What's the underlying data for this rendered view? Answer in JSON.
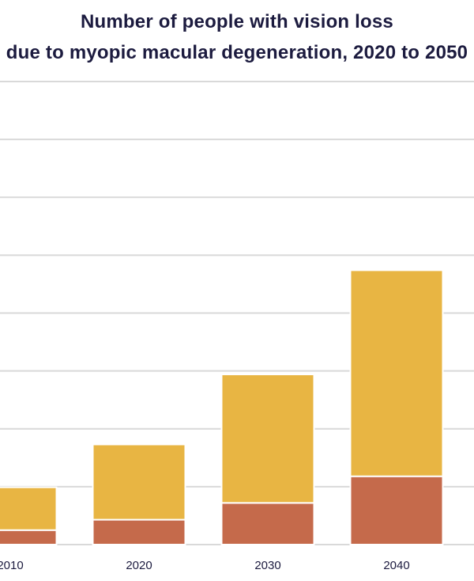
{
  "chart_data": {
    "type": "bar",
    "stacked": true,
    "title": "Number of people with vision loss",
    "subtitle": "due to myopic macular degeneration, 2020 to 2050",
    "categories": [
      "2010",
      "2020",
      "2030",
      "2040"
    ],
    "series": [
      {
        "name": "",
        "color": "#c56a4b",
        "values": [
          2.5,
          4.3,
          7.2,
          11.8
        ]
      },
      {
        "name": "",
        "color": "#e8b543",
        "values": [
          7.4,
          13.0,
          22.2,
          35.6
        ]
      }
    ],
    "ylim": [
      0,
      80
    ],
    "grid": true,
    "xlabel": "",
    "ylabel": ""
  }
}
